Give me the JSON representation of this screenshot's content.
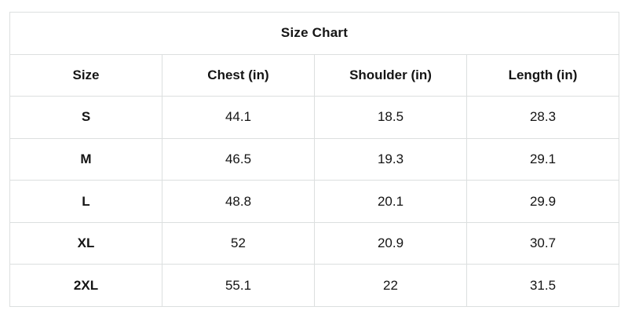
{
  "colors": {
    "background": "#ffffff",
    "border": "#dcdfdf",
    "text": "#141414"
  },
  "chart_data": {
    "type": "table",
    "title": "Size Chart",
    "columns": [
      "Size",
      "Chest (in)",
      "Shoulder (in)",
      "Length (in)"
    ],
    "rows": [
      [
        "S",
        44.1,
        18.5,
        28.3
      ],
      [
        "M",
        46.5,
        19.3,
        29.1
      ],
      [
        "L",
        48.8,
        20.1,
        29.9
      ],
      [
        "XL",
        52,
        20.9,
        30.7
      ],
      [
        "2XL",
        55.1,
        22,
        31.5
      ]
    ]
  }
}
